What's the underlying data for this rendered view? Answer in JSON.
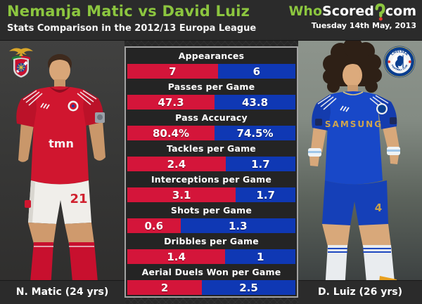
{
  "header": {
    "title": "Nemanja Matic vs David Luiz",
    "subtitle": "Stats Comparison in the 2012/13 Europa League",
    "logo": {
      "who": "Who",
      "scored": "Scored",
      "com": "com"
    },
    "date": "Tuesday 14th May, 2013"
  },
  "players": {
    "left": {
      "name_label": "N. Matic (24 yrs)",
      "club": "Benfica",
      "sponsor": "tmn",
      "shorts_number": "21",
      "kit_color": "#d0162f"
    },
    "right": {
      "name_label": "D. Luiz (26 yrs)",
      "club": "Chelsea",
      "sponsor": "SAMSUNG",
      "shorts_number": "4",
      "kit_color": "#1848c8",
      "badge_top": "CHELSEA",
      "badge_bottom": "FOOTBALL CLUB"
    }
  },
  "colors": {
    "accent_green": "#8cc63f",
    "bar_red": "#d4153a",
    "bar_blue": "#0f38b4",
    "header_bg": "#2b2b2b",
    "row_header_bg": "#2d2d2d",
    "table_border": "#a3a3a3",
    "logo_dot_red": "#e0392e"
  },
  "chart_data": {
    "type": "bar",
    "title": "Nemanja Matic vs David Luiz",
    "subtitle": "Stats Comparison in the 2012/13 Europa League",
    "layout": "stacked horizontal pair per stat; red segment = left player, blue segment = right player; split proportional to values",
    "categories": [
      "Appearances",
      "Passes per Game",
      "Pass Accuracy",
      "Tackles per Game",
      "Interceptions per Game",
      "Shots per Game",
      "Dribbles per Game",
      "Aerial Duels Won per Game"
    ],
    "series": [
      {
        "name": "N. Matic",
        "color": "#d4153a",
        "values": [
          7,
          47.3,
          80.4,
          2.4,
          3.1,
          0.6,
          1.4,
          2
        ]
      },
      {
        "name": "D. Luiz",
        "color": "#0f38b4",
        "values": [
          6,
          43.8,
          74.5,
          1.7,
          1.7,
          1.3,
          1,
          2.5
        ]
      }
    ],
    "display": [
      {
        "label": "Appearances",
        "left": "7",
        "right": "6"
      },
      {
        "label": "Passes per Game",
        "left": "47.3",
        "right": "43.8"
      },
      {
        "label": "Pass Accuracy",
        "left": "80.4%",
        "right": "74.5%"
      },
      {
        "label": "Tackles per Game",
        "left": "2.4",
        "right": "1.7"
      },
      {
        "label": "Interceptions per Game",
        "left": "3.1",
        "right": "1.7"
      },
      {
        "label": "Shots per Game",
        "left": "0.6",
        "right": "1.3"
      },
      {
        "label": "Dribbles per Game",
        "left": "1.4",
        "right": "1"
      },
      {
        "label": "Aerial Duels Won per Game",
        "left": "2",
        "right": "2.5"
      }
    ]
  }
}
